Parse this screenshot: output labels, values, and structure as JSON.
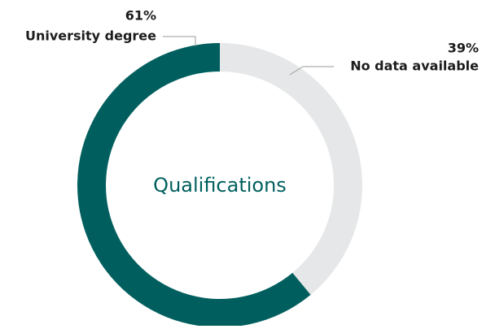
{
  "chart_data": {
    "type": "donut",
    "center_label": "Qualifications",
    "categories": [
      "University degree",
      "No data available"
    ],
    "values": [
      61,
      39
    ],
    "value_labels": [
      "61%",
      "39%"
    ],
    "colors": [
      "#005f5e",
      "#e6e7e8"
    ],
    "direction": "counterclockwise"
  }
}
